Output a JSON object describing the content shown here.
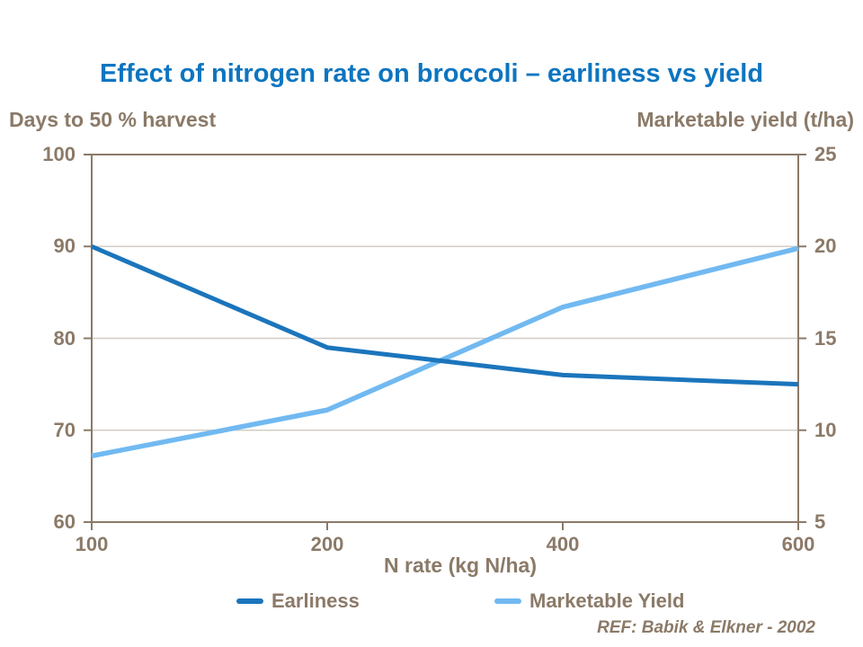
{
  "colors": {
    "title_blue": "#0D75C0",
    "axis_text_brown": "#8B7A68",
    "gridline_gray": "#D2CEC6",
    "earliness_blue": "#1B75BC",
    "yield_light_blue": "#71B9F1",
    "background": "#FFFFFF"
  },
  "chart_data": {
    "type": "line",
    "title": "Effect of nitrogen rate on broccoli – earliness vs yield",
    "x_axis": {
      "title": "N rate (kg N/ha)",
      "categories": [
        "100",
        "200",
        "400",
        "600"
      ],
      "spacing": "categorical-equal"
    },
    "left_axis": {
      "title": "Days to 50 % harvest",
      "min": 60,
      "max": 100,
      "ticks": [
        100,
        90,
        80,
        70,
        60
      ]
    },
    "right_axis": {
      "title": "Marketable yield (t/ha)",
      "min": 5,
      "max": 25,
      "ticks": [
        25,
        20,
        15,
        10,
        5
      ]
    },
    "series": [
      {
        "name": "Earliness",
        "axis": "left",
        "color": "#1B75BC",
        "values": [
          90,
          79,
          76,
          75
        ]
      },
      {
        "name": "Marketable Yield",
        "axis": "right",
        "color": "#71B9F1",
        "values": [
          8.6,
          11.1,
          16.7,
          19.9
        ]
      }
    ],
    "grid": true,
    "legend_position": "bottom",
    "reference": "REF: Babik & Elkner - 2002"
  }
}
